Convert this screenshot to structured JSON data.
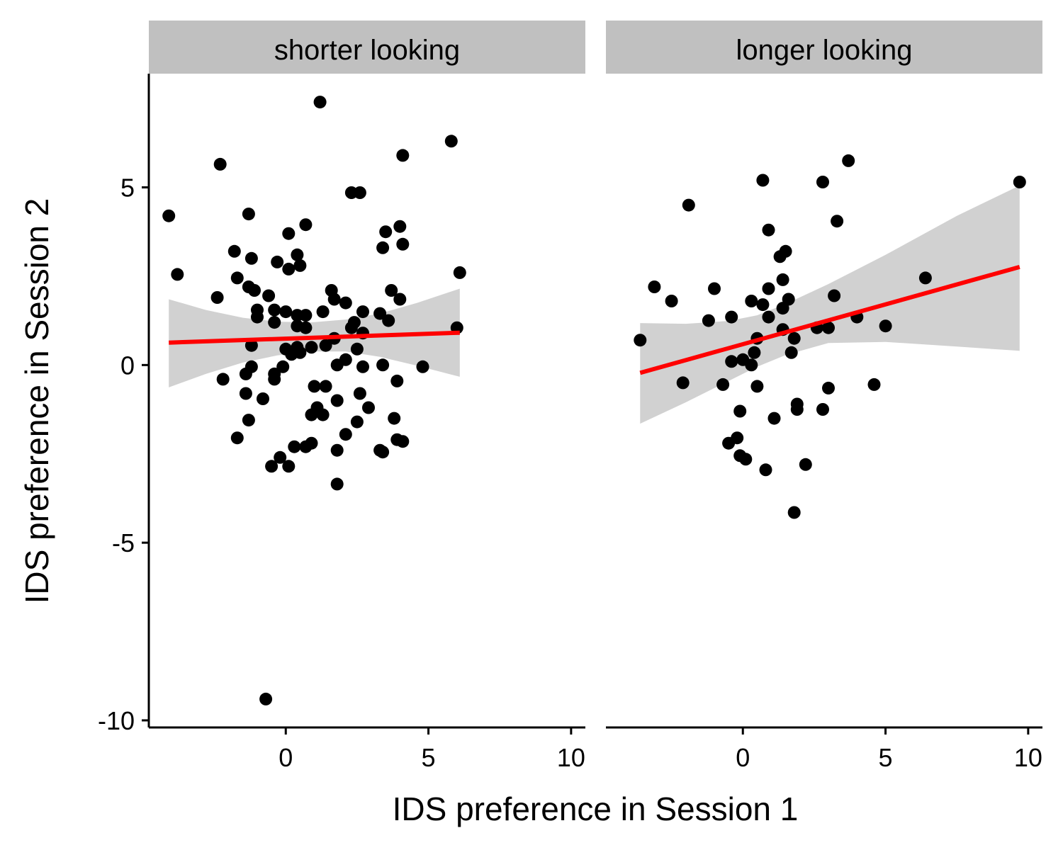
{
  "chart_data": {
    "type": "scatter",
    "xlabel": "IDS preference in Session 1",
    "ylabel": "IDS preference in Session 2",
    "xlim": [
      -4.8,
      10.5
    ],
    "ylim": [
      -10.2,
      8.2
    ],
    "x_ticks": [
      0,
      5,
      10
    ],
    "x_tick_labels": [
      "0",
      "5",
      "10"
    ],
    "y_ticks": [
      5,
      0,
      -5,
      -10
    ],
    "y_tick_labels": [
      "5",
      "0",
      "-5",
      "-10"
    ],
    "grid": false,
    "colors": {
      "points": "#000000",
      "fit_line": "#ff0000",
      "confidence_band": "#cccccc",
      "strip_background": "#c0c0c0"
    },
    "panels": [
      {
        "label": "shorter looking",
        "points": [
          [
            1.2,
            7.4
          ],
          [
            5.8,
            6.3
          ],
          [
            -2.3,
            5.65
          ],
          [
            4.1,
            5.9
          ],
          [
            2.3,
            4.85
          ],
          [
            2.6,
            4.85
          ],
          [
            -4.1,
            4.2
          ],
          [
            -1.3,
            4.25
          ],
          [
            0.7,
            3.95
          ],
          [
            0.1,
            3.7
          ],
          [
            3.5,
            3.75
          ],
          [
            4.0,
            3.9
          ],
          [
            4.1,
            3.4
          ],
          [
            3.4,
            3.3
          ],
          [
            -1.8,
            3.2
          ],
          [
            -1.2,
            3.0
          ],
          [
            0.4,
            3.1
          ],
          [
            -0.3,
            2.9
          ],
          [
            0.5,
            2.8
          ],
          [
            0.1,
            2.7
          ],
          [
            -3.8,
            2.55
          ],
          [
            -1.7,
            2.45
          ],
          [
            6.1,
            2.6
          ],
          [
            -1.3,
            2.2
          ],
          [
            -1.1,
            2.1
          ],
          [
            1.6,
            2.1
          ],
          [
            3.7,
            2.1
          ],
          [
            -2.4,
            1.9
          ],
          [
            -0.6,
            1.95
          ],
          [
            1.7,
            1.85
          ],
          [
            4.0,
            1.85
          ],
          [
            2.1,
            1.75
          ],
          [
            -1.0,
            1.55
          ],
          [
            -0.4,
            1.55
          ],
          [
            0.0,
            1.5
          ],
          [
            1.3,
            1.5
          ],
          [
            2.7,
            1.5
          ],
          [
            3.3,
            1.45
          ],
          [
            0.4,
            1.4
          ],
          [
            0.7,
            1.4
          ],
          [
            -1.0,
            1.35
          ],
          [
            -0.4,
            1.2
          ],
          [
            3.6,
            1.25
          ],
          [
            0.4,
            1.1
          ],
          [
            0.7,
            1.05
          ],
          [
            2.4,
            1.2
          ],
          [
            2.3,
            1.05
          ],
          [
            6.0,
            1.05
          ],
          [
            2.7,
            0.9
          ],
          [
            1.7,
            0.75
          ],
          [
            -1.2,
            0.55
          ],
          [
            1.4,
            0.55
          ],
          [
            0.0,
            0.45
          ],
          [
            0.4,
            0.5
          ],
          [
            0.9,
            0.5
          ],
          [
            2.5,
            0.45
          ],
          [
            0.2,
            0.3
          ],
          [
            0.5,
            0.35
          ],
          [
            2.1,
            0.15
          ],
          [
            -1.2,
            -0.05
          ],
          [
            -0.1,
            -0.05
          ],
          [
            1.8,
            0.0
          ],
          [
            2.7,
            -0.05
          ],
          [
            3.4,
            0.0
          ],
          [
            4.8,
            -0.05
          ],
          [
            -1.4,
            -0.25
          ],
          [
            -0.4,
            -0.25
          ],
          [
            -2.2,
            -0.4
          ],
          [
            -0.4,
            -0.4
          ],
          [
            3.9,
            -0.45
          ],
          [
            1.0,
            -0.6
          ],
          [
            1.4,
            -0.6
          ],
          [
            -1.4,
            -0.8
          ],
          [
            2.6,
            -0.8
          ],
          [
            -0.8,
            -0.95
          ],
          [
            1.8,
            -1.0
          ],
          [
            1.1,
            -1.2
          ],
          [
            2.9,
            -1.2
          ],
          [
            0.9,
            -1.4
          ],
          [
            1.3,
            -1.4
          ],
          [
            3.8,
            -1.5
          ],
          [
            -1.3,
            -1.55
          ],
          [
            2.5,
            -1.6
          ],
          [
            -1.7,
            -2.05
          ],
          [
            2.1,
            -1.95
          ],
          [
            3.9,
            -2.1
          ],
          [
            4.1,
            -2.15
          ],
          [
            0.7,
            -2.3
          ],
          [
            0.3,
            -2.3
          ],
          [
            0.9,
            -2.2
          ],
          [
            1.8,
            -2.4
          ],
          [
            3.3,
            -2.4
          ],
          [
            3.4,
            -2.45
          ],
          [
            -0.2,
            -2.6
          ],
          [
            -0.5,
            -2.85
          ],
          [
            0.1,
            -2.85
          ],
          [
            1.8,
            -3.35
          ],
          [
            -0.7,
            -9.4
          ]
        ],
        "fit_line": {
          "x": [
            -4.1,
            6.1
          ],
          "y": [
            0.63,
            0.91
          ]
        },
        "confidence_band": {
          "x": [
            -4.1,
            -2.8,
            -1.5,
            -0.3,
            0.9,
            2.1,
            3.3,
            4.6,
            6.1
          ],
          "upper": [
            1.85,
            1.55,
            1.33,
            1.22,
            1.2,
            1.28,
            1.45,
            1.75,
            2.15
          ],
          "lower": [
            -0.63,
            -0.25,
            0.07,
            0.27,
            0.38,
            0.38,
            0.23,
            -0.02,
            -0.33
          ]
        }
      },
      {
        "label": "longer looking",
        "points": [
          [
            3.7,
            5.75
          ],
          [
            9.7,
            5.15
          ],
          [
            0.7,
            5.2
          ],
          [
            2.8,
            5.15
          ],
          [
            -1.9,
            4.5
          ],
          [
            3.3,
            4.05
          ],
          [
            0.9,
            3.8
          ],
          [
            1.5,
            3.2
          ],
          [
            1.3,
            3.05
          ],
          [
            6.4,
            2.45
          ],
          [
            1.4,
            2.4
          ],
          [
            -3.1,
            2.2
          ],
          [
            -1.0,
            2.15
          ],
          [
            0.9,
            2.15
          ],
          [
            3.2,
            1.95
          ],
          [
            -2.5,
            1.8
          ],
          [
            0.3,
            1.8
          ],
          [
            0.7,
            1.7
          ],
          [
            1.6,
            1.85
          ],
          [
            1.4,
            1.6
          ],
          [
            -0.4,
            1.35
          ],
          [
            0.9,
            1.35
          ],
          [
            4.0,
            1.35
          ],
          [
            -1.2,
            1.25
          ],
          [
            5.0,
            1.1
          ],
          [
            1.4,
            1.0
          ],
          [
            2.6,
            1.05
          ],
          [
            3.0,
            1.05
          ],
          [
            1.8,
            0.75
          ],
          [
            0.5,
            0.75
          ],
          [
            -3.6,
            0.7
          ],
          [
            1.7,
            0.35
          ],
          [
            0.4,
            0.35
          ],
          [
            -0.4,
            0.1
          ],
          [
            0.0,
            0.15
          ],
          [
            0.3,
            0.0
          ],
          [
            -2.1,
            -0.5
          ],
          [
            -0.7,
            -0.55
          ],
          [
            0.5,
            -0.6
          ],
          [
            4.6,
            -0.55
          ],
          [
            3.0,
            -0.65
          ],
          [
            1.9,
            -1.1
          ],
          [
            2.8,
            -1.25
          ],
          [
            1.9,
            -1.25
          ],
          [
            -0.1,
            -1.3
          ],
          [
            1.1,
            -1.5
          ],
          [
            -0.2,
            -2.05
          ],
          [
            -0.5,
            -2.2
          ],
          [
            -0.1,
            -2.55
          ],
          [
            0.1,
            -2.65
          ],
          [
            2.2,
            -2.8
          ],
          [
            0.8,
            -2.95
          ],
          [
            1.8,
            -4.15
          ]
        ],
        "fit_line": {
          "x": [
            -3.6,
            9.7
          ],
          "y": [
            -0.22,
            2.76
          ]
        },
        "confidence_band": {
          "x": [
            -3.6,
            -2.0,
            -0.5,
            0.5,
            1.5,
            3.0,
            5.0,
            7.5,
            9.7
          ],
          "upper": [
            1.18,
            1.16,
            1.24,
            1.4,
            1.72,
            2.28,
            3.1,
            4.2,
            5.05
          ],
          "lower": [
            -1.65,
            -1.05,
            -0.45,
            -0.05,
            0.28,
            0.62,
            0.65,
            0.52,
            0.4
          ]
        }
      }
    ]
  }
}
